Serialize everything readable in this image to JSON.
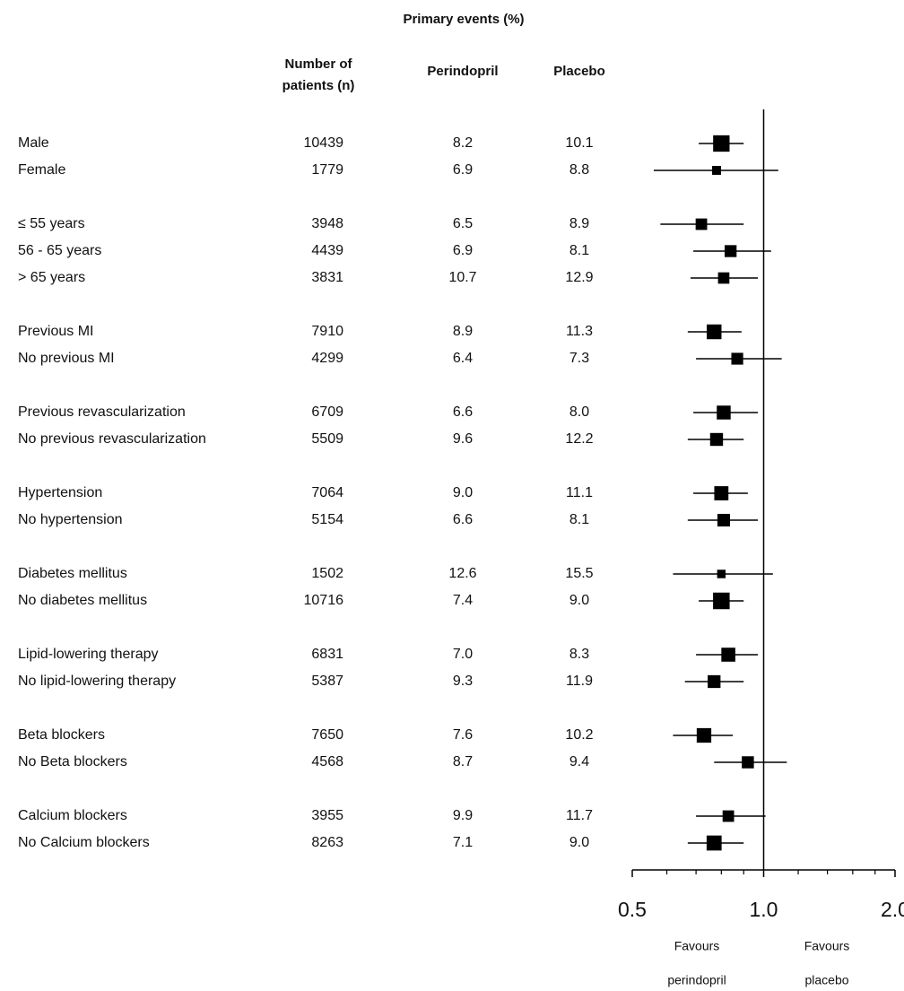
{
  "chart_data": {
    "type": "forest",
    "title": "Primary events (%)",
    "columns": [
      [
        "Number of",
        "patients (n)"
      ],
      [
        "Perindopril"
      ],
      [
        "Placebo"
      ]
    ],
    "groups": [
      {
        "rows": [
          {
            "label": "Male",
            "n": 10439,
            "perindopril": "8.2",
            "placebo": "10.1",
            "hr": 0.8,
            "ci": [
              0.71,
              0.9
            ]
          },
          {
            "label": "Female",
            "n": 1779,
            "perindopril": "6.9",
            "placebo": "8.8",
            "hr": 0.78,
            "ci": [
              0.56,
              1.08
            ]
          }
        ]
      },
      {
        "rows": [
          {
            "label": "≤  55 years",
            "n": 3948,
            "perindopril": "6.5",
            "placebo": "8.9",
            "hr": 0.72,
            "ci": [
              0.58,
              0.9
            ]
          },
          {
            "label": "56 - 65 years",
            "n": 4439,
            "perindopril": "6.9",
            "placebo": "8.1",
            "hr": 0.84,
            "ci": [
              0.69,
              1.04
            ]
          },
          {
            "label": "> 65 years",
            "n": 3831,
            "perindopril": "10.7",
            "placebo": "12.9",
            "hr": 0.81,
            "ci": [
              0.68,
              0.97
            ]
          }
        ]
      },
      {
        "rows": [
          {
            "label": "Previous MI",
            "n": 7910,
            "perindopril": "8.9",
            "placebo": "11.3",
            "hr": 0.77,
            "ci": [
              0.67,
              0.89
            ]
          },
          {
            "label": "No previous MI",
            "n": 4299,
            "perindopril": "6.4",
            "placebo": "7.3",
            "hr": 0.87,
            "ci": [
              0.7,
              1.1
            ]
          }
        ]
      },
      {
        "rows": [
          {
            "label": "Previous revascularization",
            "n": 6709,
            "perindopril": "6.6",
            "placebo": "8.0",
            "hr": 0.81,
            "ci": [
              0.69,
              0.97
            ]
          },
          {
            "label": "No previous revascularization",
            "n": 5509,
            "perindopril": "9.6",
            "placebo": "12.2",
            "hr": 0.78,
            "ci": [
              0.67,
              0.9
            ]
          }
        ]
      },
      {
        "rows": [
          {
            "label": "Hypertension",
            "n": 7064,
            "perindopril": "9.0",
            "placebo": "11.1",
            "hr": 0.8,
            "ci": [
              0.69,
              0.92
            ]
          },
          {
            "label": "No hypertension",
            "n": 5154,
            "perindopril": "6.6",
            "placebo": "8.1",
            "hr": 0.81,
            "ci": [
              0.67,
              0.97
            ]
          }
        ]
      },
      {
        "rows": [
          {
            "label": "Diabetes mellitus",
            "n": 1502,
            "perindopril": "12.6",
            "placebo": "15.5",
            "hr": 0.8,
            "ci": [
              0.62,
              1.05
            ]
          },
          {
            "label": "No diabetes mellitus",
            "n": 10716,
            "perindopril": "7.4",
            "placebo": "9.0",
            "hr": 0.8,
            "ci": [
              0.71,
              0.9
            ]
          }
        ]
      },
      {
        "rows": [
          {
            "label": "Lipid-lowering therapy",
            "n": 6831,
            "perindopril": "7.0",
            "placebo": "8.3",
            "hr": 0.83,
            "ci": [
              0.7,
              0.97
            ]
          },
          {
            "label": "No lipid-lowering therapy",
            "n": 5387,
            "perindopril": "9.3",
            "placebo": "11.9",
            "hr": 0.77,
            "ci": [
              0.66,
              0.9
            ]
          }
        ]
      },
      {
        "rows": [
          {
            "label": "Beta blockers",
            "n": 7650,
            "perindopril": "7.6",
            "placebo": "10.2",
            "hr": 0.73,
            "ci": [
              0.62,
              0.85
            ]
          },
          {
            "label": "No Beta blockers",
            "n": 4568,
            "perindopril": "8.7",
            "placebo": "9.4",
            "hr": 0.92,
            "ci": [
              0.77,
              1.13
            ]
          }
        ]
      },
      {
        "rows": [
          {
            "label": "Calcium blockers",
            "n": 3955,
            "perindopril": "9.9",
            "placebo": "11.7",
            "hr": 0.83,
            "ci": [
              0.7,
              1.01
            ]
          },
          {
            "label": "No Calcium blockers",
            "n": 8263,
            "perindopril": "7.1",
            "placebo": "9.0",
            "hr": 0.77,
            "ci": [
              0.67,
              0.9
            ]
          }
        ]
      }
    ],
    "xscale": "log",
    "xlim": [
      0.5,
      2
    ],
    "xticks": [
      {
        "value": 0.5,
        "label": "0.5"
      },
      {
        "value": 1,
        "label": "1.0"
      },
      {
        "value": 2,
        "label": "2.0"
      }
    ],
    "xminorticks": [
      0.6,
      0.7,
      0.8,
      0.9,
      1.2,
      1.4,
      1.6,
      1.8
    ],
    "reference": 1,
    "favours": [
      [
        "Favours",
        "perindopril"
      ],
      [
        "Favours",
        "placebo"
      ]
    ],
    "color": "#000000"
  }
}
